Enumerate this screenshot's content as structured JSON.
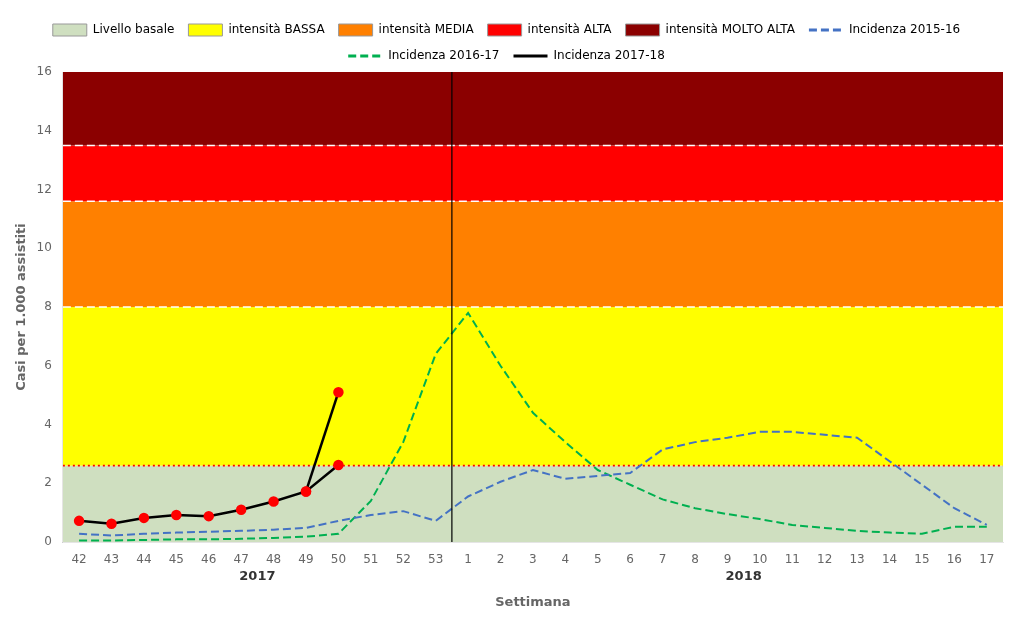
{
  "chart_data": {
    "type": "line",
    "x_label": "Settimana",
    "y_label": "Casi per 1.000 assistiti",
    "categories": [
      "42",
      "43",
      "44",
      "45",
      "46",
      "47",
      "48",
      "49",
      "50",
      "51",
      "52",
      "53",
      "1",
      "2",
      "3",
      "4",
      "5",
      "6",
      "7",
      "8",
      "9",
      "10",
      "11",
      "12",
      "13",
      "14",
      "15",
      "16",
      "17"
    ],
    "ylim": [
      0,
      16
    ],
    "yticks": [
      0,
      2,
      4,
      6,
      8,
      10,
      12,
      14,
      16
    ],
    "grid": false,
    "legend": "top",
    "bands": [
      {
        "name": "Livello basale",
        "from": 0,
        "to": 2.6,
        "color": "#cfdfc0"
      },
      {
        "name": "intensità BASSA",
        "from": 2.6,
        "to": 8.0,
        "color": "#ffff00"
      },
      {
        "name": "intensità MEDIA",
        "from": 8.0,
        "to": 11.6,
        "color": "#ff8000"
      },
      {
        "name": "intensità ALTA",
        "from": 11.6,
        "to": 13.5,
        "color": "#ff0000"
      },
      {
        "name": "intensità MOLTO ALTA",
        "from": 13.5,
        "to": 16,
        "color": "#8b0000"
      }
    ],
    "lines": [
      {
        "value": 13.5,
        "color": "#ffffff",
        "line_style": "dashed"
      },
      {
        "value": 11.6,
        "color": "#ffffff",
        "line_style": "dashed"
      },
      {
        "value": 8.0,
        "color": "#ffffff",
        "line_style": "dashed"
      },
      {
        "value": 2.6,
        "color": "#ff0000",
        "line_style": "dotted"
      }
    ],
    "vlines": [
      {
        "x": 11.5,
        "color": "#000000"
      }
    ],
    "annotations": [
      {
        "text": "2017",
        "x": 5.5
      },
      {
        "text": "2018",
        "x": 20.5
      }
    ],
    "series": [
      {
        "name": "Incidenza 2015-16",
        "color": "#4472c4",
        "line_style": "dashed",
        "values": [
          0.28,
          0.22,
          0.28,
          0.32,
          0.35,
          0.38,
          0.42,
          0.48,
          0.72,
          0.92,
          1.05,
          0.72,
          1.55,
          2.05,
          2.45,
          2.15,
          2.25,
          2.35,
          3.15,
          3.4,
          3.55,
          3.75,
          3.75,
          3.65,
          3.55,
          2.75,
          1.95,
          1.15,
          0.58
        ]
      },
      {
        "name": "Incidenza 2016-17",
        "color": "#00b050",
        "line_style": "dashed",
        "values": [
          0.05,
          0.05,
          0.07,
          0.09,
          0.09,
          0.11,
          0.14,
          0.18,
          0.28,
          1.4,
          3.4,
          6.4,
          7.8,
          6.0,
          4.4,
          3.4,
          2.45,
          1.95,
          1.45,
          1.15,
          0.95,
          0.78,
          0.58,
          0.48,
          0.38,
          0.32,
          0.28,
          0.52,
          0.52
        ]
      },
      {
        "name": "Incidenza 2017-18",
        "color": "#000000",
        "line_style": "solid",
        "marker": "o",
        "marker_color": "#ff0000",
        "values": [
          0.72,
          0.62,
          0.82,
          0.92,
          0.88,
          1.1,
          1.38,
          1.72,
          2.62,
          null,
          null,
          null,
          null,
          null,
          null,
          null,
          null,
          null,
          null,
          null,
          null,
          null,
          null,
          null,
          null,
          null,
          null,
          null,
          null
        ]
      },
      {
        "name": "Incidenza 2017-18",
        "color": "#000000",
        "line_style": "solid",
        "marker": "o",
        "marker_color": "#ff0000",
        "values": [
          null,
          null,
          null,
          null,
          null,
          null,
          null,
          1.72,
          5.1,
          null,
          null,
          null,
          null,
          null,
          null,
          null,
          null,
          null,
          null,
          null,
          null,
          null,
          null,
          null,
          null,
          null,
          null,
          null,
          null
        ]
      }
    ]
  }
}
